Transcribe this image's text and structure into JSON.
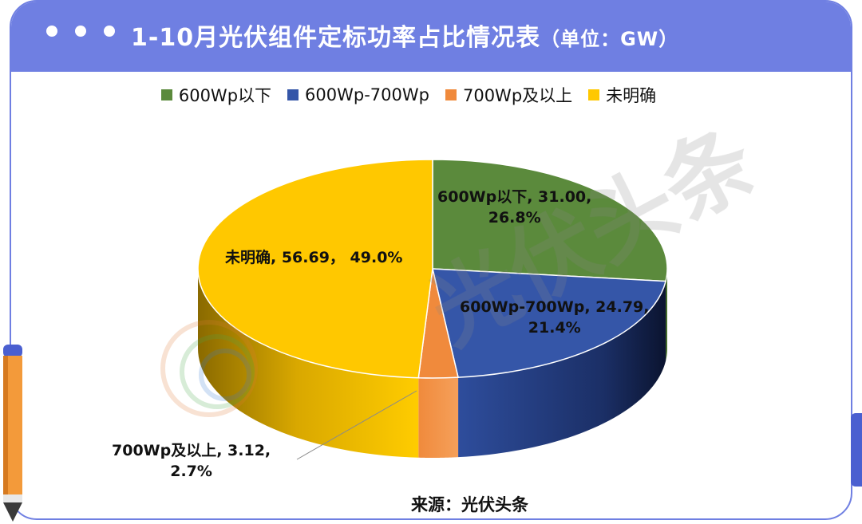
{
  "header": {
    "title": "1-10月光伏组件定标功率占比情况表",
    "unit": "（单位：GW）"
  },
  "legend": {
    "items": [
      {
        "label": "600Wp以下",
        "color": "#5b8a3c"
      },
      {
        "label": "600Wp-700Wp",
        "color": "#3556a8"
      },
      {
        "label": "700Wp及以上",
        "color": "#f08a3c"
      },
      {
        "label": "未明确",
        "color": "#ffc800"
      }
    ]
  },
  "chart_data": {
    "type": "pie",
    "title": "1-10月光伏组件定标功率占比情况表",
    "unit": "GW",
    "categories": [
      "600Wp以下",
      "600Wp-700Wp",
      "700Wp及以上",
      "未明确"
    ],
    "values": [
      31.0,
      24.79,
      3.12,
      56.69
    ],
    "percents": [
      "26.8%",
      "21.4%",
      "2.7%",
      "49.0%"
    ],
    "data_labels": [
      {
        "line1": "600Wp以下, 31.00,",
        "line2": "26.8%"
      },
      {
        "line1": "600Wp-700Wp, 24.79,",
        "line2": "21.4%"
      },
      {
        "line1": "700Wp及以上, 3.12,",
        "line2": "2.7%"
      },
      {
        "line1": "未明确, 56.69， 49.0%",
        "line2": ""
      }
    ],
    "legend_position": "top",
    "style": "3d"
  },
  "watermark": "光伏头条",
  "source": "来源：光伏头条"
}
